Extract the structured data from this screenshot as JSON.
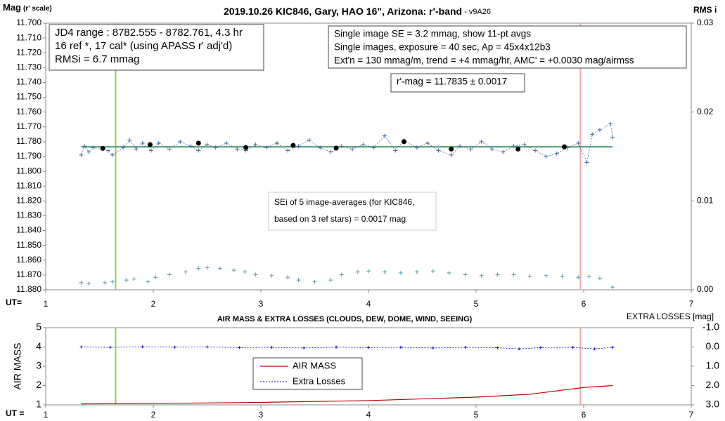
{
  "chart_data": [
    {
      "type": "scatter",
      "title": "2019.10.26 KIC846, Gary, HAO 16\", Arizona: r'-band",
      "title_note": " - v9A26",
      "y_label": "Mag",
      "y_label_note": "(r' scale)",
      "y2_label": "RMS i",
      "x_label": "UT=",
      "xlim": [
        1,
        7
      ],
      "xticks": [
        1,
        2,
        3,
        4,
        5,
        6,
        7
      ],
      "ylim": [
        11.7,
        11.88
      ],
      "y_inverted": true,
      "yticks": [
        {
          "value": 11.7,
          "label": "11.700"
        },
        {
          "value": 11.71,
          "label": "11.710"
        },
        {
          "value": 11.72,
          "label": "11.720"
        },
        {
          "value": 11.73,
          "label": "11.730"
        },
        {
          "value": 11.74,
          "label": "11.740"
        },
        {
          "value": 11.75,
          "label": "11.750"
        },
        {
          "value": 11.76,
          "label": "11.760"
        },
        {
          "value": 11.77,
          "label": "11.770"
        },
        {
          "value": 11.78,
          "label": "11.780"
        },
        {
          "value": 11.79,
          "label": "11.790"
        },
        {
          "value": 11.8,
          "label": "11.800"
        },
        {
          "value": 11.81,
          "label": "11.810"
        },
        {
          "value": 11.82,
          "label": "11.820"
        },
        {
          "value": 11.83,
          "label": "11.830"
        },
        {
          "value": 11.84,
          "label": "11.840"
        },
        {
          "value": 11.85,
          "label": "11.850"
        },
        {
          "value": 11.86,
          "label": "11.860"
        },
        {
          "value": 11.87,
          "label": "11.870"
        },
        {
          "value": 11.88,
          "label": "11.880"
        }
      ],
      "y2lim": [
        0,
        0.03
      ],
      "y2ticks": [
        {
          "value": 0,
          "label": "0.00"
        },
        {
          "value": 0.01,
          "label": "0.01"
        },
        {
          "value": 0.02,
          "label": "0.02"
        },
        {
          "value": 0.03,
          "label": "0.03"
        }
      ],
      "vlines": [
        {
          "x": 1.65,
          "color": "#92d050"
        },
        {
          "x": 5.97,
          "color": "#f4a6a6"
        }
      ],
      "hline": {
        "y": 11.7835,
        "x": [
          1.33,
          6.27
        ],
        "color": "#3a9a6a"
      },
      "annotations": [
        {
          "lines": [
            "JD4 range : 8782.555 - 8782.761,  4.3  hr",
            "16 ref *, 17 cal* (using APASS r' adj'd)",
            "RMSi = 6.7 mmag"
          ]
        },
        {
          "lines": [
            "Single image SE = 3.2 mmag, show  11-pt avgs",
            "Single images, exposure = 40 sec, Ap = 45x4x12b3",
            "Ext'n = 130 mmag/m, trend =  +4 mmag/hr, AMC' = +0.0030 mag/airmss"
          ]
        },
        {
          "lines": [
            "r'-mag = 11.7835 ± 0.0017"
          ]
        },
        {
          "lines": [
            "SEi of 5 image-averages (for KIC846,",
            "based on 3 ref stars) = 0.0017 mag"
          ]
        }
      ],
      "series": [
        {
          "color": "#4a6fa5",
          "marker": "plus",
          "line": "dotted",
          "x": [
            1.33,
            1.36,
            1.4,
            1.44,
            1.58,
            1.62,
            1.72,
            1.78,
            1.84,
            1.9,
            1.98,
            2.05,
            2.15,
            2.25,
            2.35,
            2.42,
            2.5,
            2.58,
            2.68,
            2.78,
            2.86,
            2.95,
            3.05,
            3.15,
            3.25,
            3.35,
            3.45,
            3.55,
            3.65,
            3.75,
            3.85,
            3.95,
            4.05,
            4.15,
            4.25,
            4.33,
            4.45,
            4.55,
            4.65,
            4.77,
            4.85,
            4.95,
            5.05,
            5.15,
            5.25,
            5.35,
            5.45,
            5.55,
            5.65,
            5.75,
            5.85,
            5.95,
            6.03,
            6.08,
            6.15,
            6.25,
            6.27
          ],
          "values": [
            11.789,
            11.783,
            11.787,
            11.784,
            11.786,
            11.789,
            11.784,
            11.779,
            11.785,
            11.781,
            11.786,
            11.781,
            11.785,
            11.78,
            11.783,
            11.786,
            11.782,
            11.784,
            11.781,
            11.785,
            11.786,
            11.782,
            11.784,
            11.781,
            11.786,
            11.783,
            11.779,
            11.784,
            11.787,
            11.783,
            11.785,
            11.782,
            11.784,
            11.776,
            11.786,
            11.779,
            11.784,
            11.781,
            11.786,
            11.789,
            11.783,
            11.785,
            11.78,
            11.785,
            11.787,
            11.783,
            11.782,
            11.786,
            11.79,
            11.788,
            11.784,
            11.781,
            11.794,
            11.775,
            11.772,
            11.768,
            11.777
          ]
        },
        {
          "color": "#000000",
          "marker": "dot",
          "line": "none",
          "x": [
            1.53,
            1.97,
            2.42,
            2.86,
            3.3,
            3.7,
            4.33,
            4.77,
            5.39,
            5.82
          ],
          "values": [
            11.7845,
            11.782,
            11.781,
            11.784,
            11.7825,
            11.7843,
            11.78,
            11.785,
            11.785,
            11.7835
          ]
        },
        {
          "color": "#5b9bad",
          "marker": "plus",
          "line": "none",
          "axis": "y2",
          "x": [
            1.33,
            1.4,
            1.55,
            1.62,
            1.75,
            1.82,
            1.95,
            2.02,
            2.15,
            2.3,
            2.42,
            2.5,
            2.62,
            2.75,
            2.85,
            2.95,
            3.1,
            3.25,
            3.35,
            3.5,
            3.65,
            3.75,
            3.9,
            4.0,
            4.15,
            4.3,
            4.45,
            4.6,
            4.75,
            4.9,
            5.05,
            5.2,
            5.35,
            5.5,
            5.65,
            5.8,
            5.95,
            6.05,
            6.15,
            6.27
          ],
          "values": [
            0.0008,
            0.0007,
            0.0008,
            0.0009,
            0.0011,
            0.0012,
            0.0009,
            0.0014,
            0.0017,
            0.002,
            0.0024,
            0.0025,
            0.0024,
            0.0022,
            0.002,
            0.0017,
            0.0016,
            0.0014,
            0.0011,
            0.0009,
            0.0011,
            0.0017,
            0.002,
            0.0021,
            0.002,
            0.0019,
            0.002,
            0.0021,
            0.0019,
            0.0017,
            0.0016,
            0.0017,
            0.0017,
            0.0015,
            0.0016,
            0.0015,
            0.0014,
            0.0015,
            0.0013,
            0.0003
          ]
        }
      ]
    },
    {
      "type": "line",
      "title": "AIR MASS & EXTRA LOSSES (CLOUDS, DEW, DOME, WIND, SEEING)",
      "y_label": "AIR MASS",
      "y2_label": "EXTRA LOSSES [mag]",
      "x_label": "UT =",
      "xlim": [
        1,
        7
      ],
      "xticks": [
        1,
        2,
        3,
        4,
        5,
        6,
        7
      ],
      "ylim": [
        1,
        5
      ],
      "yticks": [
        1,
        2,
        3,
        4,
        5
      ],
      "y2lim": [
        -1,
        3
      ],
      "y2_inverted": true,
      "y2ticks": [
        {
          "value": -1,
          "label": "-1.0"
        },
        {
          "value": 0,
          "label": "0.0"
        },
        {
          "value": 1,
          "label": "1.0"
        },
        {
          "value": 2,
          "label": "2.0"
        },
        {
          "value": 3,
          "label": "3.0"
        }
      ],
      "vlines": [
        {
          "x": 1.65,
          "color": "#92d050"
        },
        {
          "x": 5.97,
          "color": "#f4a6a6"
        }
      ],
      "legend": true,
      "series": [
        {
          "name": "AIR MASS",
          "color": "#c00000",
          "marker": "none",
          "line": "solid",
          "x": [
            1.33,
            2,
            3,
            4,
            5,
            5.5,
            6,
            6.27
          ],
          "values": [
            1.05,
            1.07,
            1.13,
            1.22,
            1.4,
            1.55,
            1.9,
            2.0
          ]
        },
        {
          "name": "Extra Losses",
          "color": "#0000cc",
          "marker": "plus",
          "line": "dotted",
          "axis": "y2",
          "x": [
            1.33,
            1.6,
            1.9,
            2.2,
            2.5,
            2.8,
            3.1,
            3.4,
            3.7,
            4.0,
            4.3,
            4.6,
            4.9,
            5.2,
            5.4,
            5.6,
            5.9,
            6.1,
            6.27
          ],
          "values": [
            0.0,
            0.02,
            -0.01,
            0.01,
            0.0,
            0.03,
            0.02,
            0.05,
            0.01,
            0.03,
            0.02,
            0.05,
            0.02,
            0.04,
            0.1,
            0.03,
            0.02,
            0.1,
            0.02
          ]
        }
      ]
    }
  ]
}
